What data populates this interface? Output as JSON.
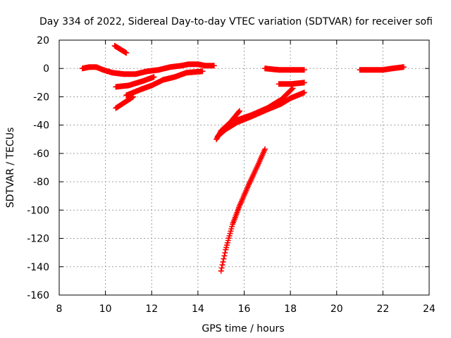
{
  "chart_data": {
    "type": "scatter",
    "title": "Day 334 of 2022, Sidereal Day-to-day VTEC variation (SDTVAR) for receiver sofi",
    "xlabel": "GPS time / hours",
    "ylabel": "SDTVAR / TECUs",
    "xlim": [
      8,
      24
    ],
    "ylim": [
      -160,
      20
    ],
    "xticks": [
      8,
      10,
      12,
      14,
      16,
      18,
      20,
      22,
      24
    ],
    "yticks": [
      -160,
      -140,
      -120,
      -100,
      -80,
      -60,
      -40,
      -20,
      0,
      20
    ],
    "grid": true,
    "marker": "plus",
    "color": "#ff0000",
    "series": [
      {
        "segments": [
          [
            [
              9.0,
              0
            ],
            [
              9.3,
              1
            ],
            [
              9.6,
              1
            ],
            [
              9.9,
              -1
            ],
            [
              10.3,
              -3
            ],
            [
              10.8,
              -4
            ],
            [
              11.3,
              -4
            ],
            [
              11.8,
              -2
            ],
            [
              12.3,
              -1
            ],
            [
              12.8,
              1
            ],
            [
              13.3,
              2
            ],
            [
              13.6,
              3
            ],
            [
              14.0,
              3
            ],
            [
              14.3,
              2
            ],
            [
              14.7,
              2
            ]
          ],
          [
            [
              10.4,
              16
            ],
            [
              10.9,
              11
            ]
          ],
          [
            [
              10.45,
              -13
            ],
            [
              11.0,
              -12
            ],
            [
              11.6,
              -9
            ],
            [
              12.1,
              -6
            ]
          ],
          [
            [
              10.45,
              -28
            ],
            [
              11.2,
              -20
            ]
          ],
          [
            [
              10.9,
              -19
            ],
            [
              11.5,
              -15
            ],
            [
              12.0,
              -12
            ],
            [
              12.5,
              -8
            ],
            [
              13.0,
              -6
            ],
            [
              13.5,
              -3
            ],
            [
              14.2,
              -2
            ]
          ],
          [
            [
              14.8,
              -50
            ],
            [
              15.0,
              -44
            ],
            [
              15.4,
              -38
            ],
            [
              15.8,
              -30
            ]
          ],
          [
            [
              14.85,
              -48
            ],
            [
              15.2,
              -43
            ],
            [
              15.7,
              -38
            ],
            [
              16.3,
              -34
            ],
            [
              17.0,
              -29
            ],
            [
              17.6,
              -25
            ],
            [
              18.0,
              -21
            ],
            [
              18.6,
              -17
            ]
          ],
          [
            [
              15.6,
              -37
            ],
            [
              16.3,
              -33
            ],
            [
              17.0,
              -28
            ],
            [
              17.6,
              -22
            ],
            [
              18.1,
              -14
            ]
          ],
          [
            [
              17.5,
              -11
            ],
            [
              18.0,
              -11
            ],
            [
              18.6,
              -10
            ]
          ],
          [
            [
              16.9,
              0
            ],
            [
              17.5,
              -1
            ],
            [
              18.0,
              -1
            ],
            [
              18.6,
              -1
            ]
          ],
          [
            [
              15.0,
              -143
            ],
            [
              15.2,
              -128
            ],
            [
              15.5,
              -110
            ],
            [
              15.8,
              -97
            ],
            [
              16.2,
              -82
            ],
            [
              16.6,
              -68
            ],
            [
              16.9,
              -57
            ]
          ],
          [
            [
              21.0,
              -1
            ],
            [
              21.5,
              -1
            ],
            [
              22.0,
              -1
            ],
            [
              22.4,
              0
            ],
            [
              22.9,
              1
            ]
          ]
        ]
      }
    ]
  }
}
